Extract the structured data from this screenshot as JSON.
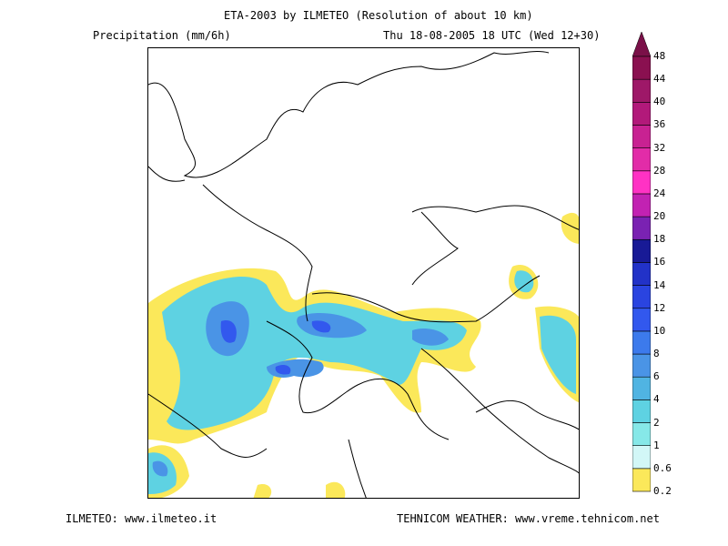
{
  "header": {
    "title": "ETA-2003 by ILMETEO (Resolution of about 10 km)",
    "variable": "Precipitation (mm/6h)",
    "valid_time": "Thu 18-08-2005 18 UTC (Wed 12+30)"
  },
  "footer": {
    "left": "ILMETEO: www.ilmeteo.it",
    "right": "TEHNICOM WEATHER: www.vreme.tehnicom.net"
  },
  "colorbar": {
    "levels": [
      "0.2",
      "0.6",
      "1",
      "2",
      "4",
      "6",
      "8",
      "10",
      "12",
      "14",
      "16",
      "18",
      "20",
      "24",
      "28",
      "32",
      "36",
      "40",
      "44",
      "48"
    ],
    "colors": [
      "#fbe85a",
      "#d2f7f7",
      "#86e8e8",
      "#5ed2e2",
      "#50b4e2",
      "#4a94e6",
      "#3c7aec",
      "#3258ee",
      "#2a44e0",
      "#2232c8",
      "#181a96",
      "#7a22b2",
      "#c222b2",
      "#ff32c4",
      "#e22ca8",
      "#c82292",
      "#b2197a",
      "#9e1868",
      "#8a1050"
    ]
  }
}
